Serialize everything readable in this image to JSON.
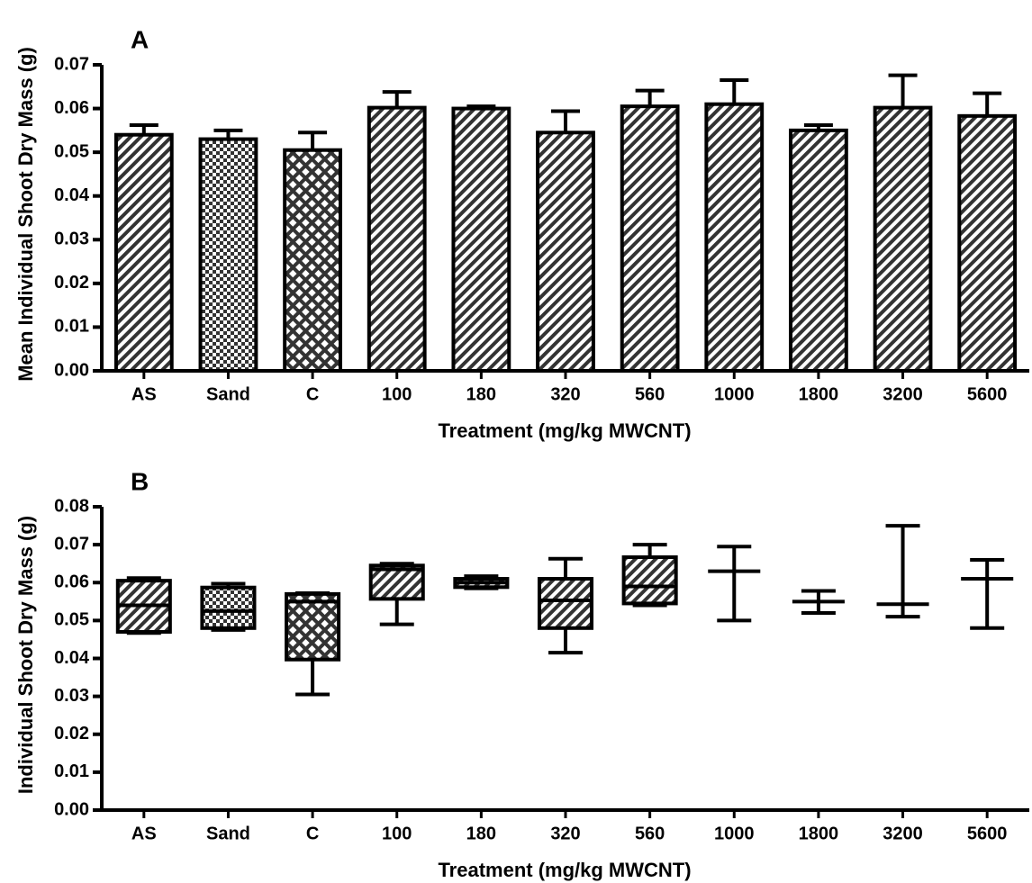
{
  "chart_data": [
    {
      "type": "bar",
      "panel_label": "A",
      "x_label": "Treatment (mg/kg MWCNT)",
      "y_label": "Mean Individual Shoot Dry Mass (g)",
      "categories": [
        "AS",
        "Sand",
        "C",
        "100",
        "180",
        "320",
        "560",
        "1000",
        "1800",
        "3200",
        "5600"
      ],
      "values": [
        0.054,
        0.053,
        0.0505,
        0.0602,
        0.06,
        0.0545,
        0.0605,
        0.061,
        0.055,
        0.0602,
        0.0583
      ],
      "errors": [
        0.0022,
        0.002,
        0.004,
        0.0036,
        0.0005,
        0.0049,
        0.0036,
        0.0055,
        0.0012,
        0.0074,
        0.0052
      ],
      "patterns": [
        "diagonal",
        "checker",
        "diamond",
        "diagonal",
        "diagonal",
        "diagonal",
        "diagonal",
        "diagonal",
        "diagonal",
        "diagonal",
        "diagonal"
      ],
      "color": "#000000",
      "ylim": [
        0,
        0.07
      ],
      "yticks": [
        {
          "value": 0,
          "label": "0.00"
        },
        0.01,
        0.02,
        0.03,
        0.04,
        0.05,
        0.06,
        0.07
      ]
    },
    {
      "type": "box",
      "panel_label": "B",
      "x_label": "Treatment (mg/kg MWCNT)",
      "y_label": "Individual Shoot Dry Mass (g)",
      "categories": [
        "AS",
        "Sand",
        "C",
        "100",
        "180",
        "320",
        "560",
        "1000",
        "1800",
        "3200",
        "5600"
      ],
      "boxes": [
        {
          "min": 0.0467,
          "q1": 0.047,
          "median": 0.054,
          "q3": 0.0605,
          "max": 0.0612
        },
        {
          "min": 0.0475,
          "q1": 0.048,
          "median": 0.0525,
          "q3": 0.0587,
          "max": 0.0597
        },
        {
          "min": 0.0305,
          "q1": 0.0397,
          "median": 0.055,
          "q3": 0.057,
          "max": 0.0572
        },
        {
          "min": 0.049,
          "q1": 0.0557,
          "median": 0.0635,
          "q3": 0.0645,
          "max": 0.065
        },
        {
          "min": 0.0585,
          "q1": 0.0588,
          "median": 0.06,
          "q3": 0.061,
          "max": 0.0617
        },
        {
          "min": 0.0415,
          "q1": 0.048,
          "median": 0.0553,
          "q3": 0.061,
          "max": 0.0663
        },
        {
          "min": 0.054,
          "q1": 0.0545,
          "median": 0.059,
          "q3": 0.0667,
          "max": 0.07
        },
        {
          "min": 0.05,
          "q1": 0.063,
          "median": 0.063,
          "q3": 0.063,
          "max": 0.0695
        },
        {
          "min": 0.052,
          "q1": 0.055,
          "median": 0.055,
          "q3": 0.055,
          "max": 0.0578
        },
        {
          "min": 0.051,
          "q1": 0.0543,
          "median": 0.0543,
          "q3": 0.0543,
          "max": 0.075
        },
        {
          "min": 0.048,
          "q1": 0.061,
          "median": 0.061,
          "q3": 0.061,
          "max": 0.066
        }
      ],
      "patterns": [
        "diagonal",
        "checker",
        "diamond",
        "diagonal",
        "diagonal",
        "diagonal",
        "diagonal",
        "diagonal",
        "diagonal",
        "diagonal",
        "diagonal"
      ],
      "color": "#000000",
      "ylim": [
        0,
        0.08
      ],
      "yticks": [
        {
          "value": 0,
          "label": "0.00"
        },
        0.01,
        0.02,
        0.03,
        0.04,
        0.05,
        0.06,
        0.07,
        0.08
      ]
    }
  ]
}
